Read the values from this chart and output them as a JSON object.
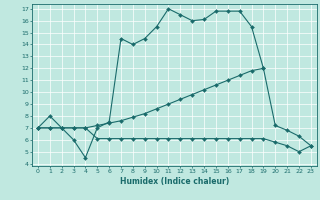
{
  "xlabel": "Humidex (Indice chaleur)",
  "bg_color": "#c0e8e0",
  "line_color": "#1a6b6b",
  "xlim": [
    -0.5,
    23.5
  ],
  "ylim": [
    3.8,
    17.4
  ],
  "xticks": [
    0,
    1,
    2,
    3,
    4,
    5,
    6,
    7,
    8,
    9,
    10,
    11,
    12,
    13,
    14,
    15,
    16,
    17,
    18,
    19,
    20,
    21,
    22,
    23
  ],
  "yticks": [
    4,
    5,
    6,
    7,
    8,
    9,
    10,
    11,
    12,
    13,
    14,
    15,
    16,
    17
  ],
  "series": [
    {
      "x": [
        0,
        1,
        2,
        3,
        4,
        5,
        6,
        7,
        8,
        9,
        10,
        11,
        12,
        13,
        14,
        15,
        16,
        17,
        18,
        19
      ],
      "y": [
        7,
        8,
        7,
        6,
        4.5,
        7,
        7.5,
        14.5,
        14.0,
        14.5,
        15.5,
        17.0,
        16.5,
        16.0,
        16.1,
        16.8,
        16.8,
        16.8,
        15.5,
        12.0
      ]
    },
    {
      "x": [
        0,
        1,
        2,
        3,
        4,
        5,
        6,
        7,
        8,
        9,
        10,
        11,
        12,
        13,
        14,
        15,
        16,
        17,
        18,
        19,
        20,
        21,
        22,
        23
      ],
      "y": [
        7.0,
        7.0,
        7.0,
        7.0,
        7.0,
        7.2,
        7.4,
        7.6,
        7.9,
        8.2,
        8.6,
        9.0,
        9.4,
        9.8,
        10.2,
        10.6,
        11.0,
        11.4,
        11.8,
        12.0,
        7.2,
        6.8,
        6.3,
        5.5
      ]
    },
    {
      "x": [
        0,
        1,
        2,
        3,
        4,
        5,
        6,
        7,
        8,
        9,
        10,
        11,
        12,
        13,
        14,
        15,
        16,
        17,
        18,
        19,
        20,
        21,
        22,
        23
      ],
      "y": [
        7.0,
        7.0,
        7.0,
        7.0,
        7.0,
        6.1,
        6.1,
        6.1,
        6.1,
        6.1,
        6.1,
        6.1,
        6.1,
        6.1,
        6.1,
        6.1,
        6.1,
        6.1,
        6.1,
        6.1,
        5.8,
        5.5,
        5.0,
        5.5
      ]
    }
  ]
}
